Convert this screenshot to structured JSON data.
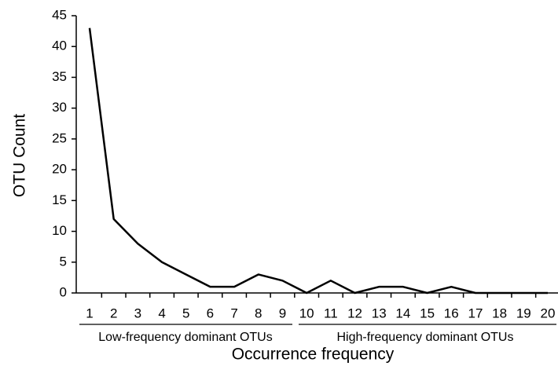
{
  "chart_data": {
    "type": "line",
    "x_label": "Occurrence frequency",
    "y_label": "OTU Count",
    "categories": [
      1,
      2,
      3,
      4,
      5,
      6,
      7,
      8,
      9,
      10,
      11,
      12,
      13,
      14,
      15,
      16,
      17,
      18,
      19,
      20
    ],
    "series": [
      {
        "name": "OTU Count",
        "color": "#000000",
        "values": [
          43,
          12,
          8,
          5,
          3,
          1,
          1,
          3,
          2,
          0,
          2,
          0,
          1,
          1,
          0,
          1,
          0,
          0,
          0,
          0
        ]
      }
    ],
    "annotations": [
      "Low-frequency dominant OTUs",
      "High-frequency dominant OTUs"
    ],
    "ylim": [
      0,
      45
    ],
    "yticks": [
      0,
      5,
      10,
      15,
      20,
      25,
      30,
      35,
      40,
      45
    ],
    "grid": false
  }
}
